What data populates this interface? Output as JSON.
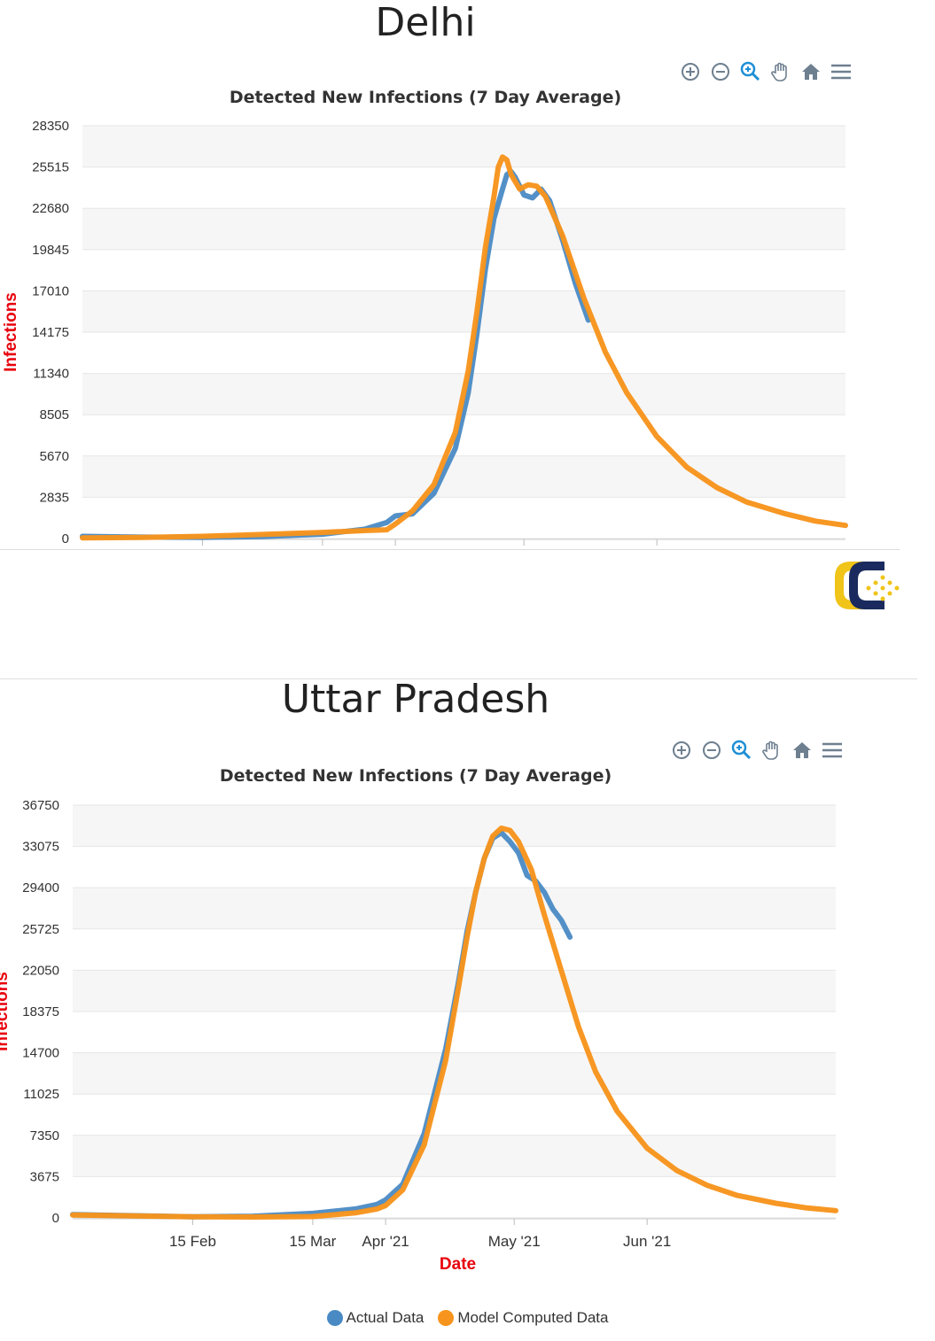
{
  "charts": [
    {
      "region": "Delhi",
      "chart_title": "Detected New Infections (7 Day Average)",
      "ylabel": "Infections",
      "yticks": [
        "28350",
        "25515",
        "22680",
        "19845",
        "17010",
        "14175",
        "11340",
        "8505",
        "5670",
        "2835",
        "0"
      ]
    },
    {
      "region": "Uttar Pradesh",
      "chart_title": "Detected New Infections (7 Day Average)",
      "ylabel": "Infections",
      "yticks": [
        "36750",
        "33075",
        "29400",
        "25725",
        "22050",
        "18375",
        "14700",
        "11025",
        "7350",
        "3675",
        "0"
      ],
      "xticks": [
        "15 Feb",
        "15 Mar",
        "Apr '21",
        "May '21",
        "Jun '21"
      ],
      "xlabel": "Date"
    }
  ],
  "legend": {
    "actual": "Actual Data",
    "model": "Model Computed Data"
  },
  "colors": {
    "actual": "#4a8ac4",
    "model": "#f7941d",
    "axis_label": "#e8000b",
    "band": "#f6f6f6",
    "grid": "#e6e6e6",
    "toolbar": "#6e7f8f",
    "toolbar_active": "#1e8fd5"
  },
  "toolbar_icons": [
    "zoom-in-icon",
    "zoom-out-icon",
    "selection-zoom-icon",
    "pan-hand-icon",
    "home-reset-icon",
    "menu-icon"
  ],
  "chart_data": [
    {
      "type": "line",
      "title": "Detected New Infections (7 Day Average)",
      "ylabel": "Infections",
      "ylim": [
        0,
        28350
      ],
      "x_start": "2021-01-18",
      "x_end": "2021-07-15",
      "grid": true,
      "series": [
        {
          "name": "Actual Data",
          "x": [
            "2021-01-18",
            "2021-02-01",
            "2021-02-15",
            "2021-03-01",
            "2021-03-15",
            "2021-03-25",
            "2021-03-30",
            "2021-04-01",
            "2021-04-05",
            "2021-04-10",
            "2021-04-15",
            "2021-04-18",
            "2021-04-20",
            "2021-04-22",
            "2021-04-24",
            "2021-04-26",
            "2021-04-27",
            "2021-04-28",
            "2021-04-29",
            "2021-05-01",
            "2021-05-03",
            "2021-05-05",
            "2021-05-07",
            "2021-05-10",
            "2021-05-13",
            "2021-05-16"
          ],
          "y": [
            150,
            100,
            80,
            140,
            300,
            650,
            1100,
            1550,
            1700,
            3100,
            6200,
            10000,
            14000,
            18500,
            22000,
            24000,
            25000,
            25200,
            24800,
            23600,
            23400,
            24000,
            23200,
            20500,
            17500,
            15000
          ]
        },
        {
          "name": "Model Computed Data",
          "x": [
            "2021-01-18",
            "2021-02-01",
            "2021-02-15",
            "2021-03-01",
            "2021-03-15",
            "2021-03-25",
            "2021-03-30",
            "2021-04-01",
            "2021-04-05",
            "2021-04-10",
            "2021-04-15",
            "2021-04-18",
            "2021-04-20",
            "2021-04-22",
            "2021-04-24",
            "2021-04-25",
            "2021-04-26",
            "2021-04-27",
            "2021-04-28",
            "2021-04-30",
            "2021-05-02",
            "2021-05-04",
            "2021-05-06",
            "2021-05-10",
            "2021-05-15",
            "2021-05-20",
            "2021-05-25",
            "2021-06-01",
            "2021-06-08",
            "2021-06-15",
            "2021-06-22",
            "2021-07-01",
            "2021-07-08",
            "2021-07-15"
          ],
          "y": [
            50,
            80,
            150,
            280,
            420,
            550,
            600,
            1000,
            1900,
            3700,
            7300,
            11500,
            15500,
            20000,
            23500,
            25500,
            26200,
            26000,
            25000,
            24000,
            24300,
            24200,
            23500,
            20800,
            16500,
            12800,
            10000,
            7000,
            4900,
            3500,
            2500,
            1700,
            1200,
            900
          ]
        }
      ]
    },
    {
      "type": "line",
      "title": "Detected New Infections (7 Day Average)",
      "xlabel": "Date",
      "ylabel": "Infections",
      "ylim": [
        0,
        36750
      ],
      "x_start": "2021-01-18",
      "x_end": "2021-07-15",
      "grid": true,
      "xticks": [
        "15 Feb",
        "15 Mar",
        "Apr '21",
        "May '21",
        "Jun '21"
      ],
      "legend": "bottom",
      "series": [
        {
          "name": "Actual Data",
          "x": [
            "2021-01-18",
            "2021-02-01",
            "2021-02-15",
            "2021-03-01",
            "2021-03-15",
            "2021-03-25",
            "2021-03-30",
            "2021-04-01",
            "2021-04-05",
            "2021-04-10",
            "2021-04-15",
            "2021-04-18",
            "2021-04-20",
            "2021-04-22",
            "2021-04-24",
            "2021-04-26",
            "2021-04-28",
            "2021-04-30",
            "2021-05-02",
            "2021-05-04",
            "2021-05-06",
            "2021-05-08",
            "2021-05-10",
            "2021-05-12",
            "2021-05-14"
          ],
          "y": [
            300,
            200,
            100,
            150,
            400,
            800,
            1200,
            1600,
            3000,
            7500,
            15000,
            21000,
            25500,
            29000,
            32000,
            33800,
            34300,
            33500,
            32500,
            30500,
            30000,
            29000,
            27500,
            26500,
            25000
          ]
        },
        {
          "name": "Model Computed Data",
          "x": [
            "2021-01-18",
            "2021-02-01",
            "2021-02-15",
            "2021-03-01",
            "2021-03-15",
            "2021-03-25",
            "2021-03-30",
            "2021-04-01",
            "2021-04-05",
            "2021-04-10",
            "2021-04-15",
            "2021-04-18",
            "2021-04-20",
            "2021-04-22",
            "2021-04-24",
            "2021-04-26",
            "2021-04-28",
            "2021-04-30",
            "2021-05-02",
            "2021-05-05",
            "2021-05-08",
            "2021-05-12",
            "2021-05-16",
            "2021-05-20",
            "2021-05-25",
            "2021-06-01",
            "2021-06-08",
            "2021-06-15",
            "2021-06-22",
            "2021-07-01",
            "2021-07-08",
            "2021-07-15"
          ],
          "y": [
            250,
            180,
            100,
            80,
            120,
            450,
            800,
            1100,
            2500,
            6500,
            14000,
            20500,
            25000,
            29000,
            32000,
            34000,
            34700,
            34500,
            33500,
            31000,
            27000,
            22000,
            17000,
            13000,
            9500,
            6200,
            4200,
            2900,
            2000,
            1300,
            900,
            650
          ]
        }
      ]
    }
  ]
}
